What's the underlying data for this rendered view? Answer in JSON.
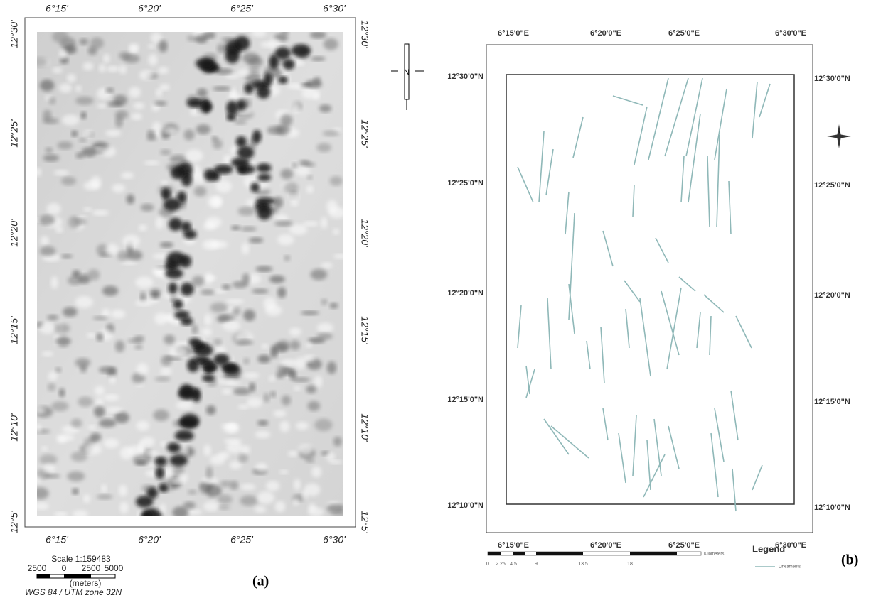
{
  "panels": {
    "a": {
      "top_labels": [
        "6°15'",
        "6°20'",
        "6°25'",
        "6°30'"
      ],
      "bottom_labels": [
        "6°15'",
        "6°20'",
        "6°25'",
        "6°30'"
      ],
      "left_labels": [
        "12°30'",
        "12°25'",
        "12°20'",
        "12°15'",
        "12°10'",
        "12°5'"
      ],
      "right_labels": [
        "12°30'",
        "12°25'",
        "12°20'",
        "12°15'",
        "12°10'",
        "12°5'"
      ],
      "scale_title": "Scale 1:159483",
      "scale_numbers": [
        "2500",
        "0",
        "2500",
        "5000"
      ],
      "scale_unit": "(meters)",
      "projection": "WGS 84 / UTM zone 32N",
      "label": "(a)"
    },
    "b": {
      "top_labels": [
        "6°15'0\"E",
        "6°20'0\"E",
        "6°25'0\"E",
        "6°30'0\"E"
      ],
      "bottom_labels": [
        "6°15'0\"E",
        "6°20'0\"E",
        "6°25'0\"E",
        "6°30'0\"E"
      ],
      "left_labels": [
        "12°30'0\"N",
        "12°25'0\"N",
        "12°20'0\"N",
        "12°15'0\"N",
        "12°10'0\"N"
      ],
      "right_labels": [
        "12°30'0\"N",
        "12°25'0\"N",
        "12°20'0\"N",
        "12°15'0\"N",
        "12°10'0\"N"
      ],
      "north": "N",
      "scale_numbers": [
        "0",
        "2.25",
        "4.5",
        "9",
        "13.5",
        "18"
      ],
      "scale_unit": "Kilometers",
      "legend_title": "Legend",
      "legend_item": "Lineaments",
      "label": "(b)"
    }
  }
}
